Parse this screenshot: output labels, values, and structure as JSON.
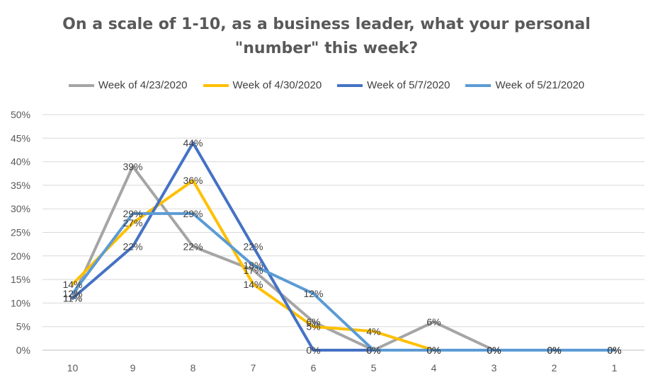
{
  "chart_data": {
    "type": "line",
    "title_line1": "On a scale of 1-10, as a business leader, what your personal",
    "title_line2": "\"number\" this week?",
    "xlabel": "",
    "ylabel": "",
    "categories": [
      "10",
      "9",
      "8",
      "7",
      "6",
      "5",
      "4",
      "3",
      "2",
      "1"
    ],
    "y_ticks": [
      "0%",
      "5%",
      "10%",
      "15%",
      "20%",
      "25%",
      "30%",
      "35%",
      "40%",
      "45%",
      "50%"
    ],
    "ylim": [
      0,
      50
    ],
    "grid": true,
    "legend_position": "top",
    "series": [
      {
        "name": "Week of 4/23/2020",
        "color": "#a5a5a5",
        "values": [
          11,
          39,
          22,
          17,
          6,
          0,
          6,
          0,
          0,
          0
        ],
        "labels": [
          "11%",
          "39%",
          "22%",
          "17%",
          "6%",
          "0%",
          "6%",
          "0%",
          "0%",
          "0%"
        ]
      },
      {
        "name": "Week of 4/30/2020",
        "color": "#ffc000",
        "values": [
          14,
          27,
          36,
          14,
          5,
          4,
          0,
          0,
          0,
          0
        ],
        "labels": [
          "14%",
          "27%",
          "36%",
          "14%",
          "5%",
          "4%",
          "0%",
          "0%",
          "0%",
          "0%"
        ]
      },
      {
        "name": "Week of 5/7/2020",
        "color": "#4472c4",
        "values": [
          11,
          22,
          44,
          22,
          0,
          0,
          0,
          0,
          0,
          0
        ],
        "labels": [
          "11%",
          "22%",
          "44%",
          "22%",
          "0%",
          "0%",
          "0%",
          "0%",
          "0%",
          "0%"
        ]
      },
      {
        "name": "Week of 5/21/2020",
        "color": "#5b9bd5",
        "values": [
          12,
          29,
          29,
          18,
          12,
          0,
          0,
          0,
          0,
          0
        ],
        "labels": [
          "12%",
          "29%",
          "29%",
          "18%",
          "12%",
          "0%",
          "0%",
          "0%",
          "0%",
          "0%"
        ]
      }
    ]
  }
}
